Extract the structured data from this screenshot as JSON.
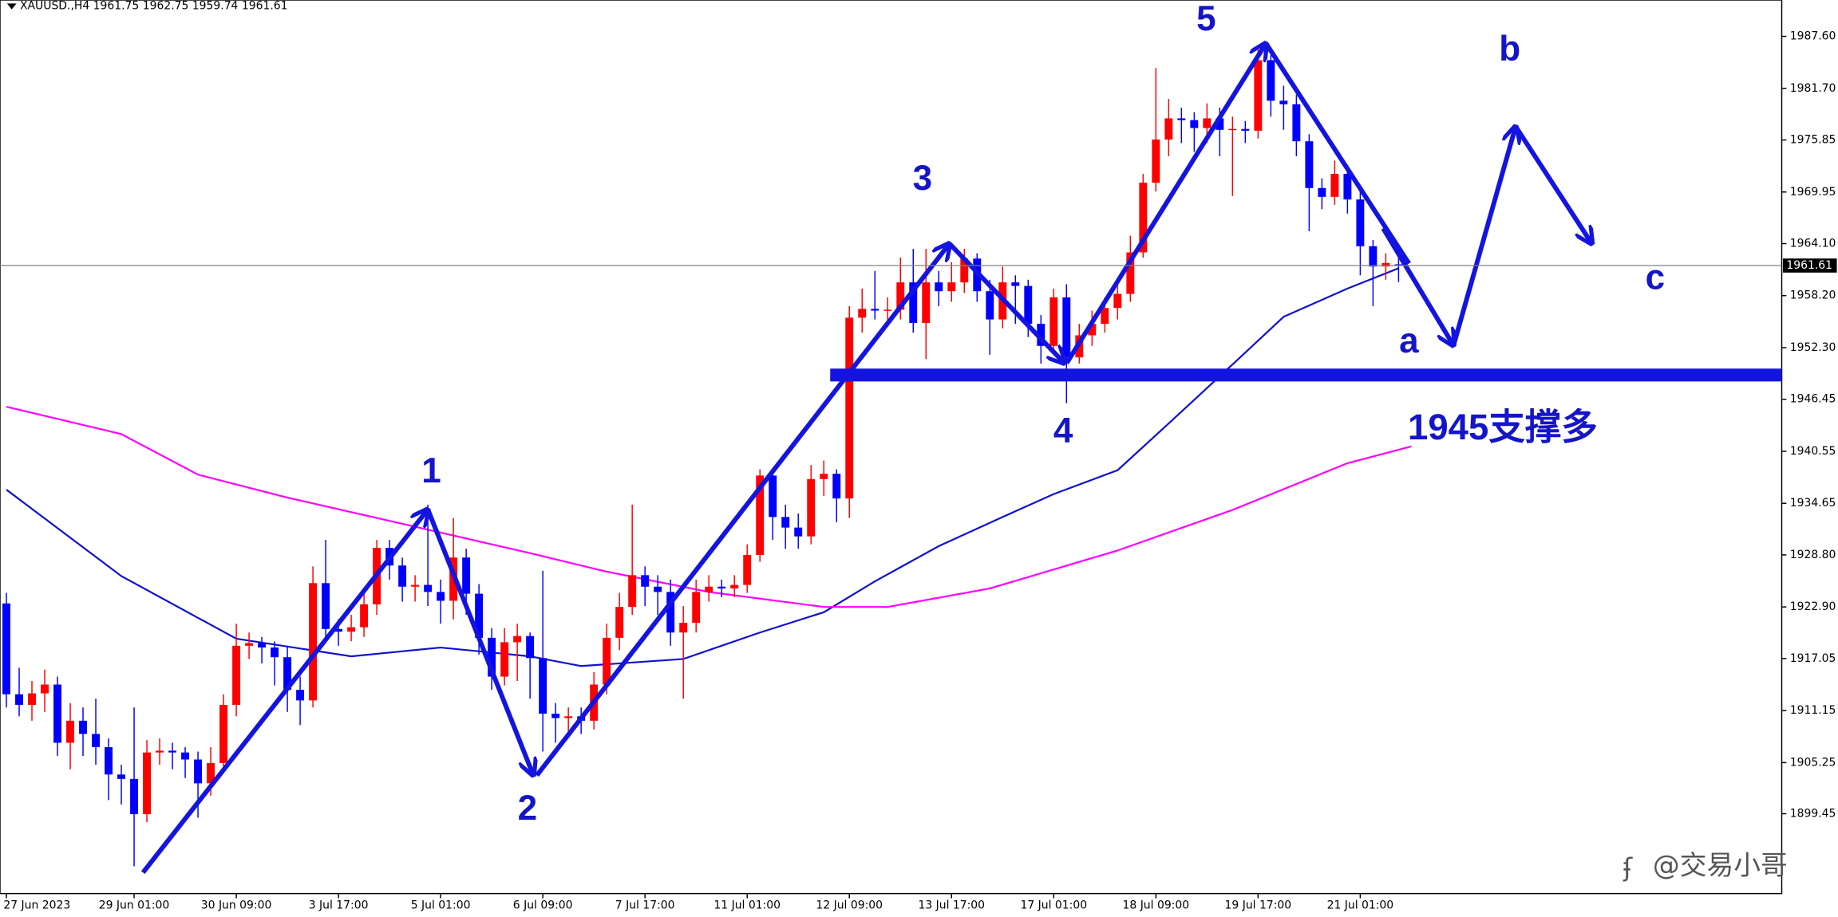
{
  "chart_data": {
    "type": "candlestick",
    "title": "XAUUSD.,H4 1961.75 1962.75 1959.74 1961.61",
    "up_color": "#ff0000",
    "down_color": "#0000ff",
    "xlim": [
      -0.5,
      139
    ],
    "ylim": [
      1890.4,
      1991.72
    ],
    "yticks": [
      {
        "value": 1987.6,
        "label": "1987.60"
      },
      {
        "value": 1981.7,
        "label": "1981.70"
      },
      1975.85,
      1969.95,
      {
        "value": 1964.1,
        "label": "1964.10"
      },
      {
        "value": 1958.2,
        "label": "1958.20"
      },
      {
        "value": 1952.3,
        "label": "1952.30"
      },
      1946.45,
      1940.55,
      1934.65,
      {
        "value": 1928.8,
        "label": "1928.80"
      },
      {
        "value": 1922.9,
        "label": "1922.90"
      },
      1917.05,
      1911.15,
      1905.25,
      1899.45
    ],
    "xticks": [
      {
        "value": 0,
        "label": "27 Jun 2023"
      },
      {
        "value": 10,
        "label": "29 Jun 01:00"
      },
      {
        "value": 18,
        "label": "30 Jun 09:00"
      },
      {
        "value": 26,
        "label": "3 Jul 17:00"
      },
      {
        "value": 34,
        "label": "5 Jul 01:00"
      },
      {
        "value": 42,
        "label": "6 Jul 09:00"
      },
      {
        "value": 50,
        "label": "7 Jul 17:00"
      },
      {
        "value": 58,
        "label": "11 Jul 01:00"
      },
      {
        "value": 66,
        "label": "12 Jul 09:00"
      },
      {
        "value": 74,
        "label": "13 Jul 17:00"
      },
      {
        "value": 82,
        "label": "17 Jul 01:00"
      },
      {
        "value": 90,
        "label": "18 Jul 09:00"
      },
      {
        "value": 98,
        "label": "19 Jul 17:00"
      },
      {
        "value": 106,
        "label": "21 Jul 01:00"
      }
    ],
    "open": [
      1923.3,
      1913.0,
      1911.8,
      1913.1,
      1914.1,
      1907.5,
      1910.0,
      1908.5,
      1907.0,
      1903.9,
      1903.4,
      1899.4,
      1906.4,
      1906.6,
      1906.4,
      1905.6,
      1902.9,
      1905.2,
      1911.8,
      1918.5,
      1918.8,
      1918.3,
      1917.2,
      1913.5,
      1912.3,
      1925.6,
      1920.4,
      1920.1,
      1920.6,
      1923.2,
      1929.6,
      1927.6,
      1925.2,
      1925.4,
      1924.6,
      1923.6,
      1928.5,
      1924.4,
      1919.4,
      1915.0,
      1918.9,
      1919.6,
      1917.1,
      1910.8,
      1910.3,
      1910.5,
      1910.0,
      1914.1,
      1919.4,
      1922.9,
      1926.5,
      1925.2,
      1924.6,
      1920.0,
      1921.1,
      1924.6,
      1925.2,
      1925.0,
      1925.4,
      1928.8,
      1937.8,
      1933.1,
      1931.9,
      1930.9,
      1937.4,
      1938.0,
      1935.2,
      1955.7,
      1956.7,
      1956.5,
      1956.6,
      1959.7,
      1955.1,
      1959.7,
      1958.7,
      1959.7,
      1962.4,
      1958.7,
      1955.5,
      1959.7,
      1959.3,
      1955.0,
      1952.5,
      1958.0,
      1951.2,
      1953.7,
      1955.0,
      1956.8,
      1958.4,
      1963.1,
      1971.0,
      1975.9,
      1978.3,
      1978.1,
      1977.2,
      1978.3,
      1977.0,
      1977.1,
      1976.9,
      1984.9,
      1980.3,
      1979.9,
      1975.7,
      1970.4,
      1969.4,
      1972.0,
      1969.1,
      1963.8,
      1961.5,
      1961.75
    ],
    "high": [
      1924.5,
      1916.0,
      1914.5,
      1915.8,
      1915.0,
      1912.0,
      1911.5,
      1912.5,
      1908.0,
      1905.0,
      1911.5,
      1907.8,
      1908.0,
      1907.5,
      1907.0,
      1906.5,
      1907.0,
      1913.0,
      1921.0,
      1920.0,
      1919.5,
      1919.0,
      1918.5,
      1915.0,
      1927.5,
      1930.5,
      1921.5,
      1922.0,
      1925.0,
      1930.5,
      1930.5,
      1928.5,
      1926.5,
      1934.5,
      1926.0,
      1933.0,
      1929.5,
      1925.5,
      1920.5,
      1920.5,
      1921.0,
      1920.0,
      1927.0,
      1912.0,
      1911.5,
      1911.5,
      1915.5,
      1921.0,
      1924.5,
      1934.5,
      1927.5,
      1926.5,
      1926.0,
      1923.0,
      1926.0,
      1926.5,
      1926.0,
      1926.5,
      1930.0,
      1938.5,
      1938.5,
      1934.5,
      1933.5,
      1939.0,
      1939.5,
      1938.5,
      1957.0,
      1959.0,
      1961.0,
      1958.0,
      1962.5,
      1963.5,
      1963.5,
      1961.0,
      1962.0,
      1963.5,
      1963.0,
      1960.0,
      1961.5,
      1960.5,
      1960.0,
      1956.0,
      1959.0,
      1959.5,
      1955.0,
      1956.5,
      1958.0,
      1960.0,
      1965.0,
      1972.0,
      1984.0,
      1980.5,
      1979.5,
      1979.0,
      1980.0,
      1979.5,
      1978.5,
      1978.0,
      1986.5,
      1985.5,
      1982.0,
      1981.0,
      1976.5,
      1971.5,
      1973.5,
      1973.0,
      1970.0,
      1964.5,
      1963.0,
      1962.75
    ],
    "low": [
      1911.5,
      1910.5,
      1910.0,
      1911.0,
      1906.0,
      1904.5,
      1906.0,
      1905.0,
      1901.0,
      1900.5,
      1893.5,
      1898.5,
      1905.0,
      1904.5,
      1903.5,
      1899.0,
      1901.5,
      1904.0,
      1910.5,
      1917.0,
      1916.5,
      1914.0,
      1911.0,
      1909.5,
      1911.5,
      1919.0,
      1918.5,
      1919.0,
      1919.5,
      1922.0,
      1926.0,
      1923.5,
      1923.5,
      1923.0,
      1921.0,
      1921.5,
      1922.0,
      1917.5,
      1913.5,
      1914.0,
      1914.5,
      1912.5,
      1906.5,
      1907.5,
      1908.5,
      1908.5,
      1909.0,
      1913.0,
      1918.0,
      1922.0,
      1923.0,
      1922.0,
      1918.5,
      1912.5,
      1920.0,
      1923.5,
      1924.0,
      1924.0,
      1924.5,
      1928.0,
      1930.5,
      1929.5,
      1929.5,
      1930.0,
      1935.5,
      1932.5,
      1933.0,
      1954.0,
      1955.5,
      1955.0,
      1955.5,
      1954.0,
      1951.0,
      1957.0,
      1957.5,
      1958.5,
      1957.5,
      1951.5,
      1954.5,
      1955.0,
      1953.5,
      1950.5,
      1951.5,
      1946.0,
      1950.5,
      1952.5,
      1954.0,
      1955.5,
      1957.5,
      1962.5,
      1970.0,
      1974.0,
      1975.5,
      1974.5,
      1975.5,
      1974.0,
      1969.5,
      1975.5,
      1976.0,
      1978.5,
      1977.0,
      1974.0,
      1965.5,
      1968.0,
      1968.5,
      1967.5,
      1960.5,
      1957.0,
      1960.0,
      1959.74
    ],
    "close": [
      1913.0,
      1911.8,
      1913.1,
      1914.1,
      1907.5,
      1910.0,
      1908.5,
      1907.0,
      1903.9,
      1903.4,
      1899.4,
      1906.4,
      1906.6,
      1906.4,
      1905.6,
      1902.9,
      1905.2,
      1911.8,
      1918.5,
      1918.8,
      1918.3,
      1917.2,
      1913.5,
      1912.3,
      1925.6,
      1920.4,
      1920.1,
      1920.6,
      1923.2,
      1929.6,
      1927.6,
      1925.2,
      1925.4,
      1924.6,
      1923.6,
      1928.5,
      1924.4,
      1919.4,
      1915.0,
      1918.9,
      1919.6,
      1917.1,
      1910.8,
      1910.3,
      1910.5,
      1910.0,
      1914.1,
      1919.4,
      1922.9,
      1926.5,
      1925.2,
      1924.6,
      1920.0,
      1921.1,
      1924.6,
      1925.2,
      1925.0,
      1925.4,
      1928.8,
      1937.8,
      1933.1,
      1931.9,
      1930.9,
      1937.4,
      1938.0,
      1935.2,
      1955.7,
      1956.7,
      1956.5,
      1956.6,
      1959.7,
      1955.1,
      1959.7,
      1958.7,
      1959.7,
      1962.4,
      1958.7,
      1955.5,
      1959.7,
      1959.3,
      1955.0,
      1952.5,
      1958.0,
      1951.2,
      1953.7,
      1955.0,
      1956.8,
      1958.4,
      1963.1,
      1971.0,
      1975.9,
      1978.3,
      1978.1,
      1977.2,
      1978.3,
      1977.0,
      1977.1,
      1976.9,
      1984.9,
      1980.3,
      1979.9,
      1975.7,
      1970.4,
      1969.4,
      1972.0,
      1969.1,
      1963.8,
      1961.5,
      1961.9,
      1961.61
    ],
    "moving_averages": [
      {
        "color": "#1010d0",
        "x": [
          0,
          9,
          18,
          27,
          34,
          41,
          45,
          53,
          59,
          64,
          68,
          73,
          78,
          82,
          87,
          91,
          96,
          100,
          105,
          109
        ],
        "values": [
          1936.2,
          1926.4,
          1919.3,
          1917.3,
          1918.3,
          1917.3,
          1916.2,
          1917.0,
          1920.0,
          1922.3,
          1925.8,
          1929.8,
          1933.1,
          1935.7,
          1938.4,
          1943.7,
          1950.4,
          1955.8,
          1959.0,
          1961.3
        ]
      },
      {
        "color": "#ff00ff",
        "x": [
          0,
          9,
          15,
          22,
          32,
          41,
          47,
          55,
          64,
          69,
          77,
          87,
          96,
          105,
          110
        ],
        "values": [
          1945.6,
          1942.5,
          1937.9,
          1935.3,
          1932.0,
          1929.0,
          1926.9,
          1924.6,
          1922.9,
          1922.9,
          1925.0,
          1929.3,
          1933.9,
          1939.2,
          1941.1
        ]
      }
    ],
    "current_price": 1961.61,
    "support_level": 1949.2,
    "annotations": [
      "1",
      "2",
      "3",
      "4",
      "5",
      "a",
      "b",
      "c",
      "1945支撑多"
    ],
    "watermark": "@交易小哥"
  }
}
